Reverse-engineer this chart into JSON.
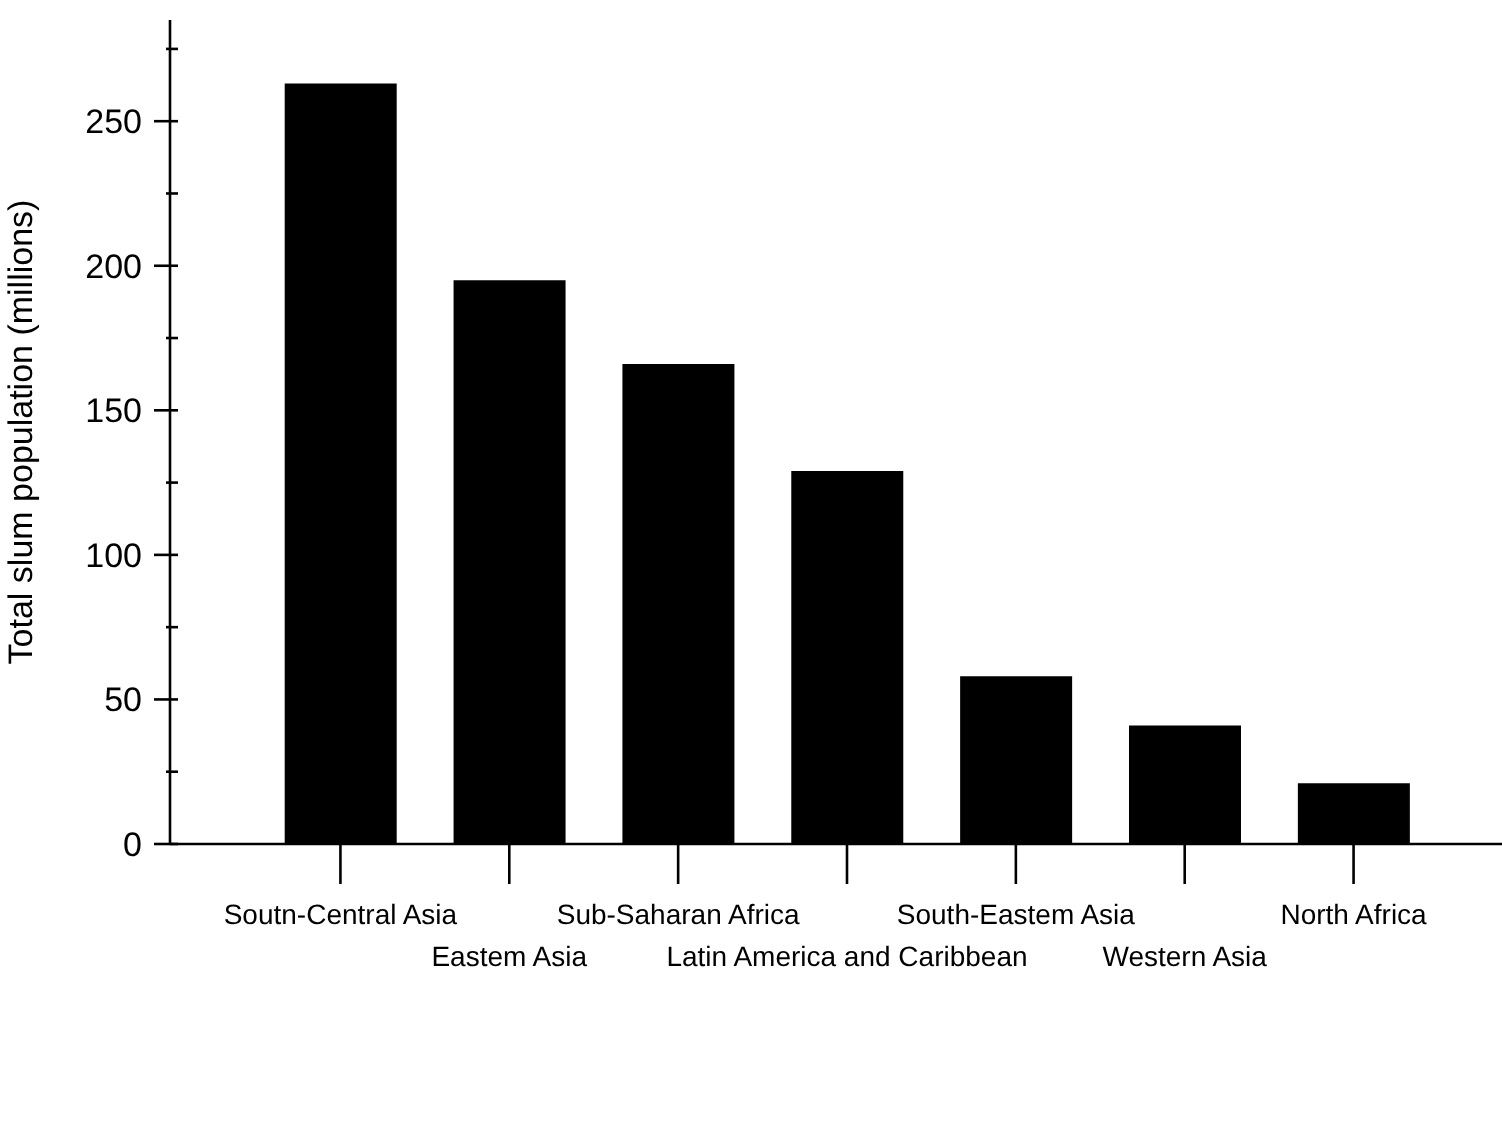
{
  "chart_data": {
    "type": "bar",
    "ylabel": "Total slum population (millions)",
    "categories": [
      "Soutn-Central Asia",
      "Eastem Asia",
      "Sub-Saharan Africa",
      "Latin America and Caribbean",
      "South-Eastem Asia",
      "Western Asia",
      "North Africa"
    ],
    "values": [
      263,
      195,
      166,
      129,
      58,
      41,
      21
    ],
    "color": "#000000",
    "ylim": [
      0,
      285
    ],
    "yticks": [
      0,
      {
        "value": 25,
        "label": null
      },
      50,
      {
        "value": 75,
        "label": null
      },
      100,
      {
        "value": 125,
        "label": null
      },
      150,
      {
        "value": 175,
        "label": null
      },
      200,
      {
        "value": 225,
        "label": null
      },
      250,
      {
        "value": 275,
        "label": null
      }
    ],
    "grid": false
  }
}
